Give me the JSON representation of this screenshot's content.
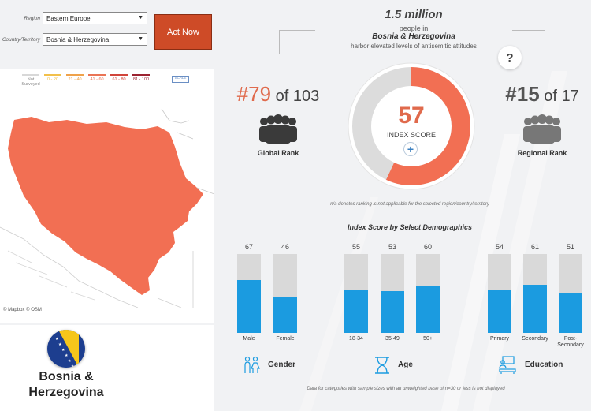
{
  "filters": {
    "region_label": "Region",
    "region_value": "Eastern Europe",
    "country_label": "Country/Territory",
    "country_value": "Bosnia & Herzegovina",
    "act_button": "Act Now"
  },
  "map": {
    "legend": [
      {
        "label": "Not Surveyed",
        "color": "#d8d8d8"
      },
      {
        "label": "0 - 20",
        "color": "#f2c04a"
      },
      {
        "label": "21 - 40",
        "color": "#efa24a"
      },
      {
        "label": "41 - 60",
        "color": "#ea7455"
      },
      {
        "label": "61 - 80",
        "color": "#d1443a"
      },
      {
        "label": "81 - 100",
        "color": "#9c2230"
      }
    ],
    "scale_label": "SCALE",
    "country_fill": "#f26f53",
    "credit": "© Mapbox  © OSM"
  },
  "country": {
    "name_line1": "Bosnia &",
    "name_line2": "Herzegovina"
  },
  "headline": {
    "number": "1.5 million",
    "line1": "people in",
    "line2": "Bosnia & Herzegovina",
    "line3": "harbor elevated levels of antisemitic attitudes",
    "help": "?"
  },
  "global_rank": {
    "rank": "#79",
    "of": "of 103",
    "label": "Global Rank"
  },
  "regional_rank": {
    "rank": "#15",
    "of": "of 17",
    "label": "Regional Rank"
  },
  "index": {
    "score": 57,
    "score_text": "57",
    "label": "INDEX SCORE",
    "plus": "+",
    "accent": "#f26f53"
  },
  "na_note": "n/a denotes ranking is not applicable for the selected region/country/territory",
  "demographics": {
    "title": "Index Score by Select Demographics",
    "bar_color": "#1b9be0",
    "groups": [
      {
        "name": "Gender",
        "bars": [
          {
            "label": "Male",
            "value": 67,
            "value_text": "67"
          },
          {
            "label": "Female",
            "value": 46,
            "value_text": "46"
          }
        ]
      },
      {
        "name": "Age",
        "bars": [
          {
            "label": "18-34",
            "value": 55,
            "value_text": "55"
          },
          {
            "label": "35-49",
            "value": 53,
            "value_text": "53"
          },
          {
            "label": "50+",
            "value": 60,
            "value_text": "60"
          }
        ]
      },
      {
        "name": "Education",
        "bars": [
          {
            "label": "Primary",
            "value": 54,
            "value_text": "54"
          },
          {
            "label": "Secondary",
            "value": 61,
            "value_text": "61"
          },
          {
            "label": "Post-Secondary",
            "value": 51,
            "value_text": "51"
          }
        ]
      }
    ],
    "footnote": "Data for categories with sample sizes with an unweighted base of n=30 or less is not displayed"
  }
}
